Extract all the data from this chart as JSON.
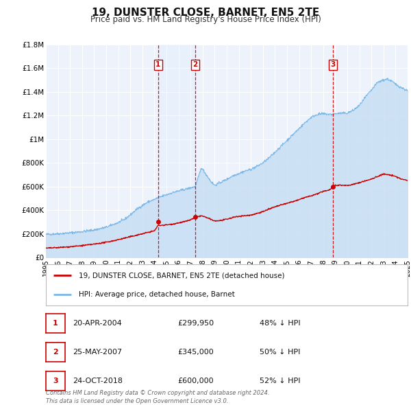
{
  "title": "19, DUNSTER CLOSE, BARNET, EN5 2TE",
  "subtitle": "Price paid vs. HM Land Registry's House Price Index (HPI)",
  "title_fontsize": 11,
  "subtitle_fontsize": 9,
  "background_color": "#ffffff",
  "plot_bg_color": "#eef2fb",
  "grid_color": "#ffffff",
  "ylim": [
    0,
    1800000
  ],
  "xlim_start": 1995,
  "xlim_end": 2025,
  "ytick_labels": [
    "£0",
    "£200K",
    "£400K",
    "£600K",
    "£800K",
    "£1M",
    "£1.2M",
    "£1.4M",
    "£1.6M",
    "£1.8M"
  ],
  "ytick_values": [
    0,
    200000,
    400000,
    600000,
    800000,
    1000000,
    1200000,
    1400000,
    1600000,
    1800000
  ],
  "hpi_color": "#7ab8e8",
  "hpi_fill_color": "#c8dff5",
  "price_color": "#cc0000",
  "sale_marker_color": "#cc0000",
  "vline_color": "#cc0000",
  "sale_events": [
    {
      "label": 1,
      "year": 2004.3,
      "price": 299950,
      "date": "20-APR-2004",
      "price_str": "£299,950",
      "pct": "48% ↓ HPI"
    },
    {
      "label": 2,
      "year": 2007.4,
      "price": 345000,
      "date": "25-MAY-2007",
      "price_str": "£345,000",
      "pct": "50% ↓ HPI"
    },
    {
      "label": 3,
      "year": 2018.8,
      "price": 600000,
      "date": "24-OCT-2018",
      "price_str": "£600,000",
      "pct": "52% ↓ HPI"
    }
  ],
  "legend_label1": "19, DUNSTER CLOSE, BARNET, EN5 2TE (detached house)",
  "legend_label2": "HPI: Average price, detached house, Barnet",
  "footer1": "Contains HM Land Registry data © Crown copyright and database right 2024.",
  "footer2": "This data is licensed under the Open Government Licence v3.0."
}
